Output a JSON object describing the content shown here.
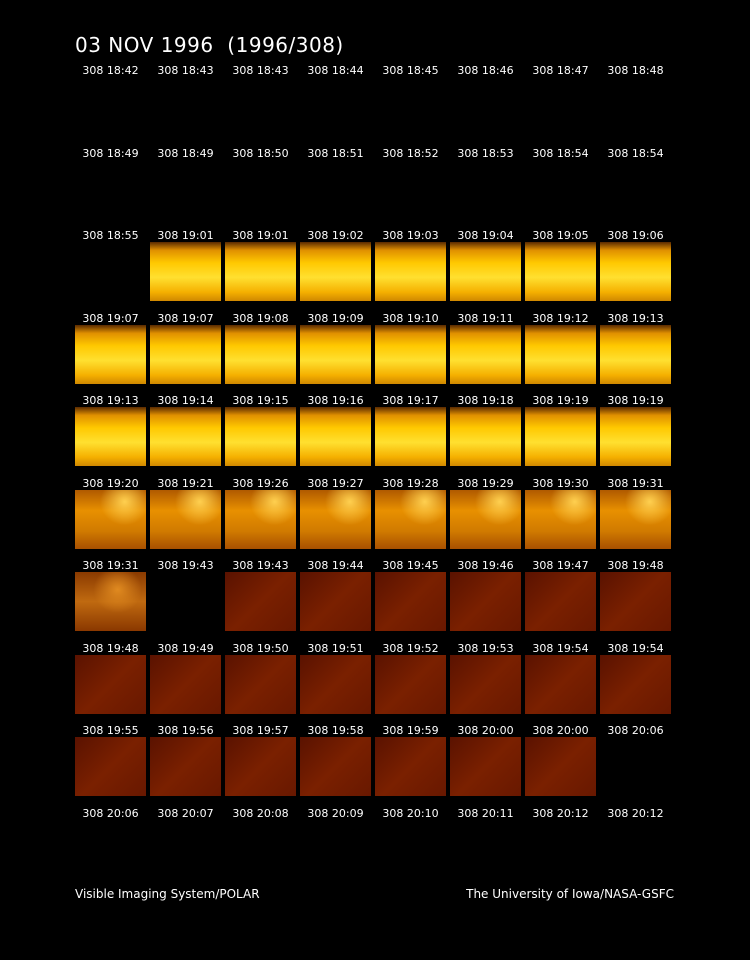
{
  "header": {
    "title": "03 NOV 1996  (1996/308)"
  },
  "frames": [
    [
      "308 18:42",
      "308 18:43",
      "308 18:43",
      "308 18:44",
      "308 18:45",
      "308 18:46",
      "308 18:47",
      "308 18:48"
    ],
    [
      "308 18:49",
      "308 18:49",
      "308 18:50",
      "308 18:51",
      "308 18:52",
      "308 18:53",
      "308 18:54",
      "308 18:54"
    ],
    [
      "308 18:55",
      "308 19:01",
      "308 19:01",
      "308 19:02",
      "308 19:03",
      "308 19:04",
      "308 19:05",
      "308 19:06"
    ],
    [
      "308 19:07",
      "308 19:07",
      "308 19:08",
      "308 19:09",
      "308 19:10",
      "308 19:11",
      "308 19:12",
      "308 19:13"
    ],
    [
      "308 19:13",
      "308 19:14",
      "308 19:15",
      "308 19:16",
      "308 19:17",
      "308 19:18",
      "308 19:19",
      "308 19:19"
    ],
    [
      "308 19:20",
      "308 19:21",
      "308 19:26",
      "308 19:27",
      "308 19:28",
      "308 19:29",
      "308 19:30",
      "308 19:31"
    ],
    [
      "308 19:31",
      "308 19:43",
      "308 19:43",
      "308 19:44",
      "308 19:45",
      "308 19:46",
      "308 19:47",
      "308 19:48"
    ],
    [
      "308 19:48",
      "308 19:49",
      "308 19:50",
      "308 19:51",
      "308 19:52",
      "308 19:53",
      "308 19:54",
      "308 19:54"
    ],
    [
      "308 19:55",
      "308 19:56",
      "308 19:57",
      "308 19:58",
      "308 19:59",
      "308 20:00",
      "308 20:00",
      "308 20:06"
    ],
    [
      "308 20:06",
      "308 20:07",
      "308 20:08",
      "308 20:09",
      "308 20:10",
      "308 20:11",
      "308 20:12",
      "308 20:12"
    ]
  ],
  "footer": {
    "left": "Visible Imaging System/POLAR",
    "right": "The University of Iowa/NASA-GSFC"
  }
}
